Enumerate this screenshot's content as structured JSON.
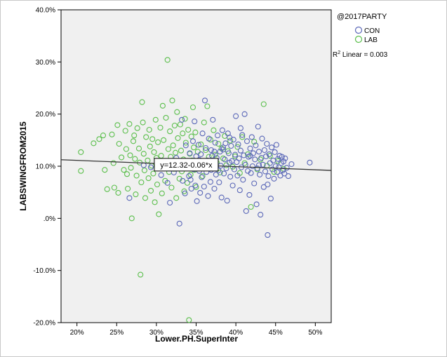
{
  "chart_data": {
    "type": "scatter",
    "title": "",
    "xlabel": "Lower.PH.SuperInter",
    "ylabel": "LABSWINGFROM2015",
    "xlim": [
      18,
      52
    ],
    "ylim": [
      -20,
      40
    ],
    "x_ticks": [
      20,
      25,
      30,
      35,
      40,
      45,
      50
    ],
    "x_tick_labels": [
      "20%",
      "25%",
      "30%",
      "35%",
      "40%",
      "45%",
      "50%"
    ],
    "y_ticks": [
      -20,
      -10,
      0,
      10,
      20,
      30,
      40
    ],
    "y_tick_labels": [
      "-20.0%",
      "-10.0%",
      ".0%",
      "10.0%",
      "20.0%",
      "30.0%",
      "40.0%"
    ],
    "grid": false,
    "legend": {
      "title": "@2017PARTY",
      "placement": "right-top",
      "items": [
        {
          "label": "CON",
          "color": "#5b68b8"
        },
        {
          "label": "LAB",
          "color": "#5cbf4d"
        }
      ]
    },
    "fit_line": {
      "label": "y=12.32-0.06*x",
      "intercept": 12.32,
      "slope": -0.06,
      "r2_text": "R",
      "r2_sup": "2",
      "r2_rest": " Linear = 0.003",
      "color": "#333333"
    },
    "series": [
      {
        "name": "LAB",
        "color": "#5cbf4d",
        "points": [
          [
            20.5,
            12.7
          ],
          [
            20.5,
            9.1
          ],
          [
            22.1,
            14.4
          ],
          [
            22.8,
            15.2
          ],
          [
            23.3,
            15.9
          ],
          [
            23.5,
            9.3
          ],
          [
            23.8,
            5.6
          ],
          [
            24.4,
            16.1
          ],
          [
            24.6,
            10.6
          ],
          [
            24.7,
            5.9
          ],
          [
            25.1,
            17.9
          ],
          [
            25.2,
            4.9
          ],
          [
            25.3,
            14.3
          ],
          [
            25.6,
            11.7
          ],
          [
            25.9,
            9.3
          ],
          [
            26.1,
            16.8
          ],
          [
            26.2,
            13.3
          ],
          [
            26.3,
            8.5
          ],
          [
            26.4,
            5.7
          ],
          [
            26.6,
            18.1
          ],
          [
            26.7,
            12.1
          ],
          [
            26.8,
            9.7
          ],
          [
            26.9,
            0.0
          ],
          [
            27.1,
            14.8
          ],
          [
            27.2,
            15.9
          ],
          [
            27.3,
            11.4
          ],
          [
            27.4,
            4.6
          ],
          [
            27.5,
            8.2
          ],
          [
            27.6,
            17.3
          ],
          [
            27.8,
            13.4
          ],
          [
            27.9,
            10.7
          ],
          [
            28.0,
            -10.8
          ],
          [
            28.1,
            6.9
          ],
          [
            28.2,
            22.3
          ],
          [
            28.3,
            18.4
          ],
          [
            28.4,
            12.4
          ],
          [
            28.5,
            9.2
          ],
          [
            28.6,
            3.9
          ],
          [
            28.7,
            15.6
          ],
          [
            28.9,
            11.1
          ],
          [
            29.0,
            7.7
          ],
          [
            29.1,
            17.0
          ],
          [
            29.2,
            13.8
          ],
          [
            29.3,
            5.3
          ],
          [
            29.4,
            10.1
          ],
          [
            29.5,
            15.2
          ],
          [
            29.6,
            8.6
          ],
          [
            29.7,
            12.7
          ],
          [
            29.8,
            3.1
          ],
          [
            29.9,
            18.9
          ],
          [
            30.0,
            11.6
          ],
          [
            30.1,
            6.5
          ],
          [
            30.2,
            14.6
          ],
          [
            30.3,
            0.8
          ],
          [
            30.4,
            9.7
          ],
          [
            30.5,
            17.4
          ],
          [
            30.6,
            12.0
          ],
          [
            30.7,
            4.8
          ],
          [
            30.8,
            21.6
          ],
          [
            30.9,
            15.0
          ],
          [
            31.0,
            10.3
          ],
          [
            31.1,
            7.2
          ],
          [
            31.2,
            19.3
          ],
          [
            31.4,
            30.4
          ],
          [
            31.5,
            13.3
          ],
          [
            31.6,
            8.9
          ],
          [
            31.7,
            16.7
          ],
          [
            31.8,
            11.8
          ],
          [
            31.9,
            5.9
          ],
          [
            32.0,
            22.6
          ],
          [
            32.1,
            14.0
          ],
          [
            32.2,
            9.5
          ],
          [
            32.3,
            17.8
          ],
          [
            32.4,
            12.6
          ],
          [
            32.5,
            3.9
          ],
          [
            32.6,
            20.4
          ],
          [
            32.7,
            15.4
          ],
          [
            32.8,
            10.8
          ],
          [
            32.9,
            7.6
          ],
          [
            33.0,
            18.0
          ],
          [
            33.1,
            13.0
          ],
          [
            33.2,
            9.0
          ],
          [
            33.3,
            16.3
          ],
          [
            33.4,
            11.3
          ],
          [
            33.5,
            5.2
          ],
          [
            33.6,
            19.1
          ],
          [
            33.7,
            14.5
          ],
          [
            33.8,
            10.0
          ],
          [
            33.9,
            6.8
          ],
          [
            34.0,
            17.0
          ],
          [
            34.1,
            -19.5
          ],
          [
            34.2,
            12.4
          ],
          [
            34.3,
            8.4
          ],
          [
            34.4,
            15.7
          ],
          [
            34.5,
            11.1
          ],
          [
            34.6,
            21.3
          ],
          [
            34.7,
            13.6
          ],
          [
            34.8,
            9.3
          ],
          [
            34.9,
            16.5
          ],
          [
            35.0,
            6.0
          ],
          [
            35.2,
            12.8
          ],
          [
            35.4,
            10.4
          ],
          [
            35.6,
            14.2
          ],
          [
            35.8,
            8.1
          ],
          [
            36.0,
            18.4
          ],
          [
            36.2,
            13.1
          ],
          [
            36.4,
            21.5
          ],
          [
            36.6,
            11.8
          ],
          [
            36.8,
            15.1
          ],
          [
            37.0,
            9.6
          ],
          [
            37.2,
            16.9
          ],
          [
            37.4,
            12.2
          ],
          [
            37.6,
            10.7
          ],
          [
            37.8,
            14.3
          ],
          [
            38.0,
            8.8
          ],
          [
            38.2,
            13.4
          ],
          [
            38.4,
            11.5
          ],
          [
            38.6,
            15.8
          ],
          [
            38.8,
            10.2
          ],
          [
            39.0,
            12.9
          ],
          [
            39.3,
            14.9
          ],
          [
            39.6,
            9.9
          ],
          [
            39.9,
            11.9
          ],
          [
            40.2,
            13.7
          ],
          [
            40.5,
            8.7
          ],
          [
            40.8,
            15.6
          ],
          [
            41.1,
            10.6
          ],
          [
            41.5,
            12.3
          ],
          [
            41.9,
            2.2
          ],
          [
            42.3,
            14.7
          ],
          [
            42.7,
            9.4
          ],
          [
            43.1,
            11.3
          ],
          [
            43.5,
            21.9
          ],
          [
            43.9,
            10.1
          ],
          [
            44.3,
            12.0
          ],
          [
            44.8,
            8.9
          ],
          [
            45.3,
            11.0
          ],
          [
            46.0,
            9.5
          ]
        ]
      },
      {
        "name": "CON",
        "color": "#5b68b8",
        "points": [
          [
            26.6,
            3.9
          ],
          [
            28.4,
            10.2
          ],
          [
            29.3,
            9.8
          ],
          [
            30.6,
            8.3
          ],
          [
            31.4,
            6.8
          ],
          [
            31.7,
            3.0
          ],
          [
            32.2,
            8.8
          ],
          [
            32.5,
            11.6
          ],
          [
            32.9,
            -1.0
          ],
          [
            33.2,
            18.9
          ],
          [
            33.3,
            7.2
          ],
          [
            33.6,
            4.8
          ],
          [
            33.7,
            14.0
          ],
          [
            33.9,
            10.3
          ],
          [
            34.1,
            8.1
          ],
          [
            34.2,
            12.5
          ],
          [
            34.4,
            5.7
          ],
          [
            34.6,
            14.8
          ],
          [
            34.7,
            9.4
          ],
          [
            34.8,
            18.6
          ],
          [
            34.9,
            6.3
          ],
          [
            35.0,
            11.9
          ],
          [
            35.1,
            3.3
          ],
          [
            35.3,
            14.1
          ],
          [
            35.4,
            9.1
          ],
          [
            35.5,
            4.9
          ],
          [
            35.6,
            12.3
          ],
          [
            35.7,
            7.9
          ],
          [
            35.8,
            16.3
          ],
          [
            35.9,
            10.5
          ],
          [
            36.0,
            6.1
          ],
          [
            36.1,
            22.6
          ],
          [
            36.2,
            13.5
          ],
          [
            36.3,
            8.9
          ],
          [
            36.4,
            11.1
          ],
          [
            36.5,
            4.3
          ],
          [
            36.6,
            15.3
          ],
          [
            36.7,
            9.9
          ],
          [
            36.8,
            7.0
          ],
          [
            36.9,
            13.1
          ],
          [
            37.0,
            12.0
          ],
          [
            37.1,
            18.9
          ],
          [
            37.2,
            10.4
          ],
          [
            37.3,
            5.7
          ],
          [
            37.4,
            14.5
          ],
          [
            37.5,
            8.4
          ],
          [
            37.6,
            11.6
          ],
          [
            37.7,
            15.9
          ],
          [
            37.8,
            9.2
          ],
          [
            37.9,
            6.9
          ],
          [
            38.0,
            12.8
          ],
          [
            38.1,
            10.1
          ],
          [
            38.2,
            4.0
          ],
          [
            38.3,
            16.9
          ],
          [
            38.4,
            13.6
          ],
          [
            38.5,
            8.6
          ],
          [
            38.6,
            11.3
          ],
          [
            38.7,
            14.4
          ],
          [
            38.8,
            9.6
          ],
          [
            38.9,
            3.4
          ],
          [
            39.0,
            16.3
          ],
          [
            39.1,
            12.5
          ],
          [
            39.2,
            10.7
          ],
          [
            39.3,
            8.0
          ],
          [
            39.4,
            13.9
          ],
          [
            39.5,
            11.0
          ],
          [
            39.6,
            6.3
          ],
          [
            39.7,
            15.1
          ],
          [
            39.8,
            9.4
          ],
          [
            39.9,
            12.2
          ],
          [
            40.0,
            19.6
          ],
          [
            40.1,
            10.8
          ],
          [
            40.2,
            8.2
          ],
          [
            40.3,
            14.2
          ],
          [
            40.4,
            11.5
          ],
          [
            40.5,
            5.4
          ],
          [
            40.6,
            13.0
          ],
          [
            40.7,
            9.8
          ],
          [
            40.8,
            16.0
          ],
          [
            40.9,
            7.4
          ],
          [
            41.0,
            12.1
          ],
          [
            41.1,
            20.0
          ],
          [
            41.2,
            10.3
          ],
          [
            41.3,
            1.4
          ],
          [
            41.4,
            14.8
          ],
          [
            41.5,
            9.1
          ],
          [
            41.6,
            11.8
          ],
          [
            41.7,
            4.5
          ],
          [
            41.8,
            13.4
          ],
          [
            41.9,
            8.7
          ],
          [
            42.0,
            15.6
          ],
          [
            42.1,
            10.0
          ],
          [
            42.2,
            12.5
          ],
          [
            42.3,
            6.7
          ],
          [
            42.4,
            11.3
          ],
          [
            42.5,
            14.0
          ],
          [
            42.6,
            2.7
          ],
          [
            42.7,
            9.6
          ],
          [
            42.8,
            17.6
          ],
          [
            42.9,
            12.8
          ],
          [
            43.0,
            8.4
          ],
          [
            43.1,
            0.7
          ],
          [
            43.2,
            11.6
          ],
          [
            43.3,
            15.3
          ],
          [
            43.4,
            10.3
          ],
          [
            43.5,
            6.0
          ],
          [
            43.6,
            13.1
          ],
          [
            43.7,
            9.0
          ],
          [
            43.8,
            11.9
          ],
          [
            43.9,
            14.3
          ],
          [
            44.0,
            -3.2
          ],
          [
            44.1,
            8.1
          ],
          [
            44.2,
            12.3
          ],
          [
            44.3,
            10.6
          ],
          [
            44.4,
            3.8
          ],
          [
            44.5,
            13.6
          ],
          [
            44.6,
            9.4
          ],
          [
            44.7,
            11.1
          ],
          [
            44.8,
            7.6
          ],
          [
            44.9,
            12.7
          ],
          [
            45.0,
            10.0
          ],
          [
            45.1,
            14.1
          ],
          [
            45.2,
            8.9
          ],
          [
            45.3,
            11.4
          ],
          [
            45.4,
            9.8
          ],
          [
            45.5,
            12.0
          ],
          [
            45.6,
            8.2
          ],
          [
            45.7,
            10.6
          ],
          [
            45.8,
            11.8
          ],
          [
            45.9,
            9.2
          ],
          [
            46.0,
            10.9
          ],
          [
            46.1,
            8.6
          ],
          [
            46.2,
            11.5
          ],
          [
            46.4,
            9.7
          ],
          [
            46.6,
            8.1
          ],
          [
            47.0,
            10.4
          ],
          [
            49.3,
            10.7
          ],
          [
            38.4,
            13.2
          ],
          [
            39.2,
            15.5
          ],
          [
            40.6,
            17.3
          ],
          [
            41.8,
            12.0
          ],
          [
            42.9,
            10.2
          ],
          [
            44.0,
            6.5
          ],
          [
            37.3,
            12.8
          ],
          [
            36.9,
            9.3
          ],
          [
            35.4,
            11.2
          ],
          [
            34.3,
            7.4
          ],
          [
            33.5,
            9.8
          ]
        ]
      }
    ]
  }
}
